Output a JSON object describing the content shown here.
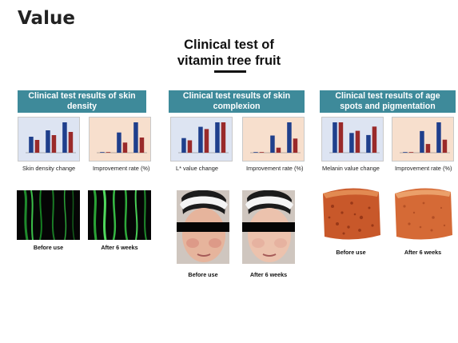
{
  "header": {
    "heading": "Value"
  },
  "title": {
    "line1": "Clinical test of",
    "line2": "vitamin tree fruit"
  },
  "sections": [
    {
      "banner": "Clinical test results of skin density",
      "caption_left": "Skin density change",
      "caption_right": "Improvement rate (%)",
      "photo_before": "Before use",
      "photo_after": "After 6 weeks"
    },
    {
      "banner": "Clinical test results of skin complexion",
      "caption_left": "L* value change",
      "caption_right": "Improvement rate (%)",
      "photo_before": "Before use",
      "photo_after": "After 6 weeks"
    },
    {
      "banner": "Clinical test results of age spots and pigmentation",
      "caption_left": "Melanin value change",
      "caption_right": "Improvement rate (%)",
      "photo_before": "Before use",
      "photo_after": "After 6 weeks"
    }
  ],
  "chart_data": [
    {
      "type": "bar",
      "title": "",
      "series": [
        {
          "values": [
            20,
            28,
            38
          ]
        },
        {
          "values": [
            16,
            22,
            26
          ]
        }
      ]
    },
    {
      "type": "bar",
      "title": "",
      "series": [
        {
          "values": [
            0,
            8,
            12
          ]
        },
        {
          "values": [
            0,
            4,
            6
          ]
        }
      ]
    },
    {
      "type": "bar",
      "title": "",
      "series": [
        {
          "values": [
            56,
            61,
            63
          ]
        },
        {
          "values": [
            55,
            60,
            63
          ]
        }
      ]
    },
    {
      "type": "bar",
      "title": "",
      "series": [
        {
          "values": [
            0,
            1.7,
            3.0
          ]
        },
        {
          "values": [
            0,
            0.5,
            1.4
          ]
        }
      ]
    },
    {
      "type": "bar",
      "title": "",
      "series": [
        {
          "values": [
            268,
            253,
            250
          ]
        },
        {
          "values": [
            268,
            256,
            262
          ]
        }
      ]
    },
    {
      "type": "bar",
      "title": "",
      "series": [
        {
          "values": [
            0,
            5,
            7
          ]
        },
        {
          "values": [
            0,
            2,
            3
          ]
        }
      ]
    }
  ],
  "colors": {
    "banner": "#3e8a9a",
    "series_a": "#1f3f8c",
    "series_b": "#9a2a2a",
    "panel_left_bg": "#dde4f2",
    "panel_right_bg": "#f7dfcd"
  }
}
